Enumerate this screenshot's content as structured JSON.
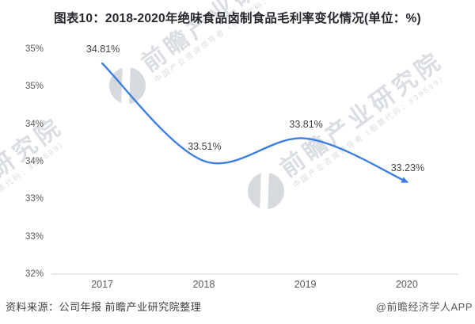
{
  "title": "图表10：2018-2020年绝味食品卤制食品毛利率变化情况(单位：%)",
  "chart_data": {
    "type": "line",
    "title": "图表10：2018-2020年绝味食品卤制食品毛利率变化情况(单位：%)",
    "xlabel": "",
    "ylabel": "",
    "categories": [
      "2017",
      "2018",
      "2019",
      "2020"
    ],
    "values": [
      34.81,
      33.51,
      33.81,
      33.23
    ],
    "point_labels": [
      "34.81%",
      "33.51%",
      "33.81%",
      "33.23%"
    ],
    "ylim": [
      32,
      35
    ],
    "y_ticks": [
      {
        "value": 35.0,
        "label": "35%"
      },
      {
        "value": 34.5,
        "label": "35%"
      },
      {
        "value": 34.0,
        "label": "34%"
      },
      {
        "value": 33.5,
        "label": "34%"
      },
      {
        "value": 33.0,
        "label": "33%"
      },
      {
        "value": 32.5,
        "label": "33%"
      },
      {
        "value": 32.0,
        "label": "32%"
      }
    ],
    "grid": false,
    "legend": "none",
    "line_color": "#3d7ee3",
    "axis_line_color": "#d9d9d9",
    "smooth": true,
    "end_arrow": true
  },
  "watermark": {
    "brand": "前瞻产业研究院",
    "subtext": "中国产业咨询领导者（股票代码：839599）"
  },
  "footer": {
    "source": "资料来源：公司年报 前瞻产业研究院整理",
    "credit": "@前瞻经济学人APP"
  }
}
